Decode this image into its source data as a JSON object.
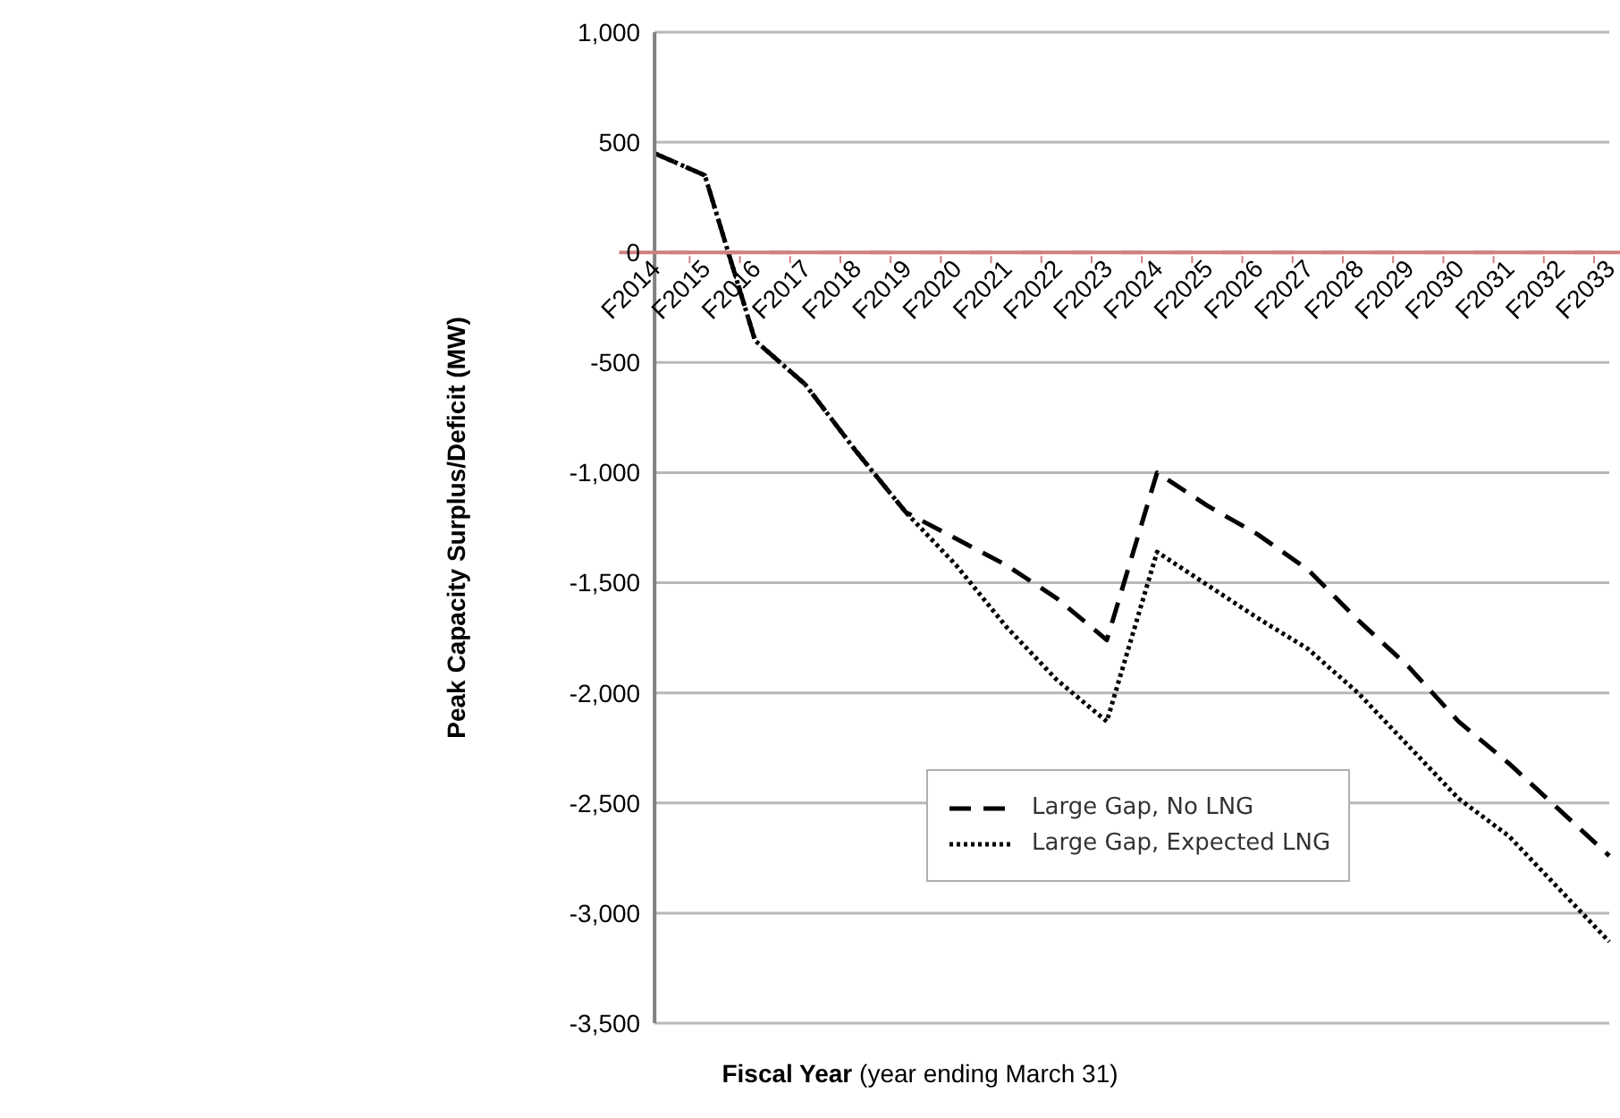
{
  "chart_data": {
    "type": "line",
    "xlabel": "Fiscal Year (year ending March 31)",
    "ylabel": "Peak Capacity Surplus/Deficit  (MW)",
    "categories": [
      "F2014",
      "F2015",
      "F2016",
      "F2017",
      "F2018",
      "F2019",
      "F2020",
      "F2021",
      "F2022",
      "F2023",
      "F2024",
      "F2025",
      "F2026",
      "F2027",
      "F2028",
      "F2029",
      "F2030",
      "F2031",
      "F2032",
      "F2033"
    ],
    "series": [
      {
        "name": "Large Gap, No LNG",
        "color": "#000000",
        "line_style": "dashed",
        "values": [
          450,
          350,
          -400,
          -600,
          -900,
          -1180,
          -1300,
          -1420,
          -1570,
          -1760,
          -1000,
          -1150,
          -1280,
          -1440,
          -1670,
          -1880,
          -2130,
          -2320,
          -2530,
          -2740
        ]
      },
      {
        "name": "Large Gap, Expected LNG",
        "color": "#000000",
        "line_style": "dotted",
        "values": [
          450,
          350,
          -400,
          -600,
          -900,
          -1180,
          -1420,
          -1700,
          -1940,
          -2130,
          -1360,
          -1510,
          -1660,
          -1800,
          -2000,
          -2240,
          -2480,
          -2650,
          -2890,
          -3130
        ]
      }
    ],
    "ylim": [
      -3500,
      1000
    ],
    "yticks": [
      {
        "value": 1000,
        "label": "1,000"
      },
      500,
      0,
      {
        "value": -500,
        "label": "-500"
      },
      {
        "value": -1000,
        "label": "-1,000"
      },
      {
        "value": -1500,
        "label": "-1,500"
      },
      {
        "value": -2000,
        "label": "-2,000"
      },
      {
        "value": -2500,
        "label": "-2,500"
      },
      {
        "value": -3000,
        "label": "-3,000"
      },
      {
        "value": -3500,
        "label": "-3,500"
      }
    ],
    "grid": "y",
    "legend": "bottom right",
    "marker": "none"
  }
}
